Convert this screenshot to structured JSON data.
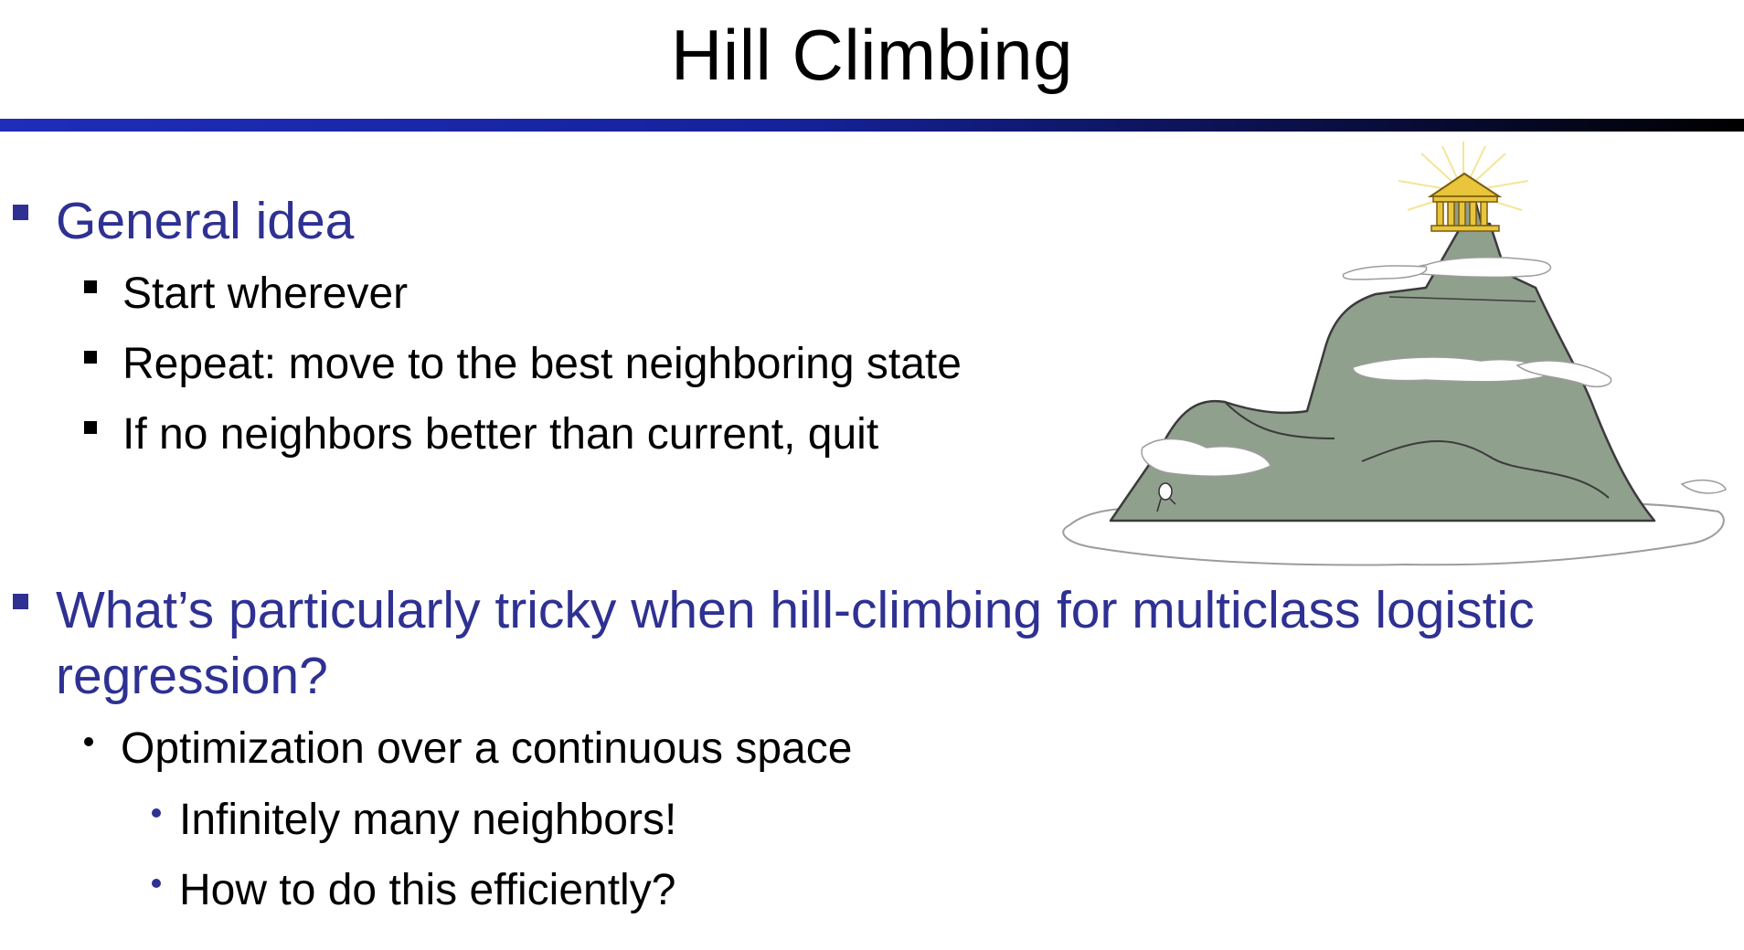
{
  "slide": {
    "title": "Hill Climbing",
    "sections": [
      {
        "heading": "General idea",
        "items": [
          "Start wherever",
          "Repeat: move to the best neighboring state",
          "If no neighbors better than current, quit"
        ]
      },
      {
        "heading": "What’s particularly tricky when hill-climbing for multiclass logistic regression?",
        "items": [
          {
            "text": "Optimization over a continuous space",
            "subitems": [
              "Infinitely many neighbors!",
              "How to do this efficiently?"
            ]
          }
        ]
      }
    ]
  },
  "colors": {
    "heading": "#2e3192",
    "body_text": "#000000",
    "rule_start": "#1f2db8",
    "rule_end": "#000000",
    "mountain": "#8fa08c",
    "summit_temple": "#e8c53a"
  },
  "illustration": {
    "icon": "mountain-with-temple-icon"
  }
}
